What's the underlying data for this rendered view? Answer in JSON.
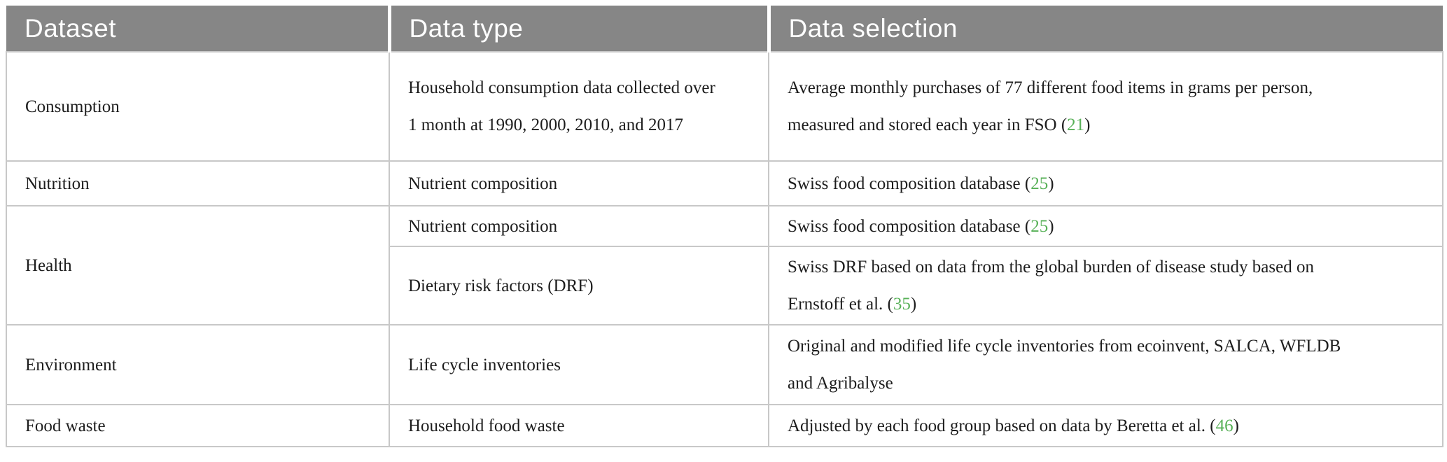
{
  "table": {
    "header_bg": "#868686",
    "accent_green": "#58b158",
    "border_color": "#c8c8c8",
    "columns": [
      "Dataset",
      "Data type",
      "Data selection"
    ],
    "rows": [
      {
        "dataset": "Consumption",
        "data_type": "Household consumption data collected over 1 month at 1990, 2000, 2010, and 2017",
        "selection_prefix": "Average monthly purchases of 77 different food items in grams per person, measured and stored each year in FSO (",
        "selection_citation": "21",
        "selection_suffix": ")"
      },
      {
        "dataset": "Nutrition",
        "data_type": "Nutrient composition",
        "selection_prefix": "Swiss food composition database (",
        "selection_citation": "25",
        "selection_suffix": ")"
      },
      {
        "dataset": "Health",
        "data_type": "Nutrient composition",
        "selection_prefix": "Swiss food composition database (",
        "selection_citation": "25",
        "selection_suffix": ")"
      },
      {
        "data_type": "Dietary risk factors (DRF)",
        "selection_prefix": "Swiss DRF based on data from the global burden of disease study based on Ernstoff et al. (",
        "selection_citation": "35",
        "selection_suffix": ")"
      },
      {
        "dataset": "Environment",
        "data_type": "Life cycle inventories",
        "selection_prefix": "Original and modified life cycle inventories from ecoinvent, SALCA, WFLDB and Agribalyse"
      },
      {
        "dataset": "Food waste",
        "data_type": "Household food waste",
        "selection_prefix": "Adjusted by each food group based on data by Beretta et al. (",
        "selection_citation": "46",
        "selection_suffix": ")"
      }
    ]
  }
}
